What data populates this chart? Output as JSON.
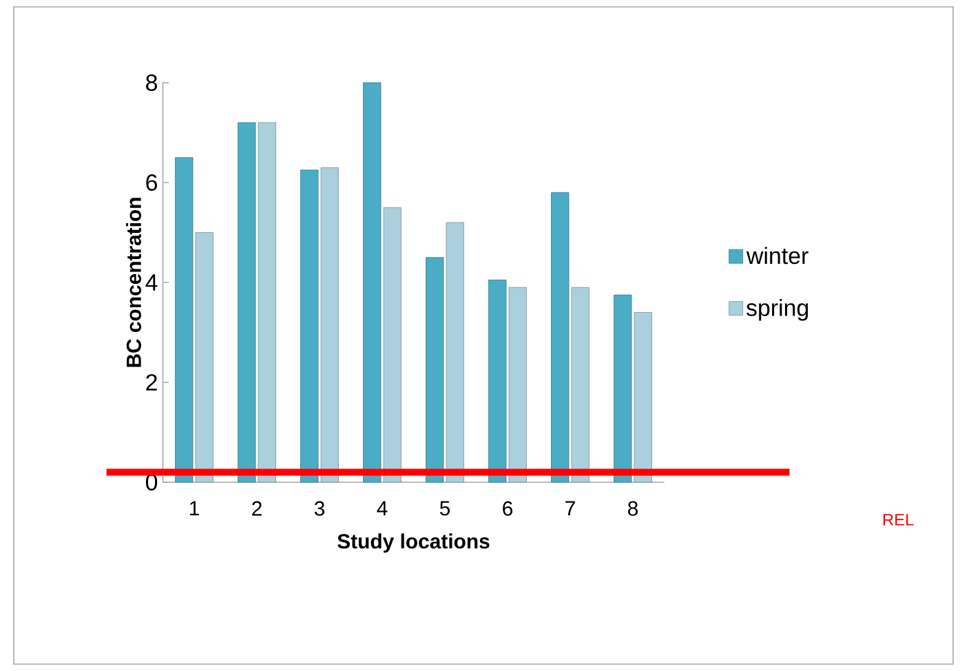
{
  "chart_data": {
    "type": "bar",
    "xlabel": "Study locations",
    "ylabel": "BC concentration",
    "categories": [
      "1",
      "2",
      "3",
      "4",
      "5",
      "6",
      "7",
      "8"
    ],
    "series": [
      {
        "name": "winter",
        "color": "#4bacc6",
        "values": [
          6.5,
          7.2,
          6.25,
          8.0,
          4.5,
          4.05,
          5.8,
          3.75
        ]
      },
      {
        "name": "spring",
        "color": "#a9d0dc",
        "values": [
          5.0,
          7.2,
          6.3,
          5.5,
          5.2,
          3.9,
          3.9,
          3.4
        ]
      }
    ],
    "ylim": [
      0,
      8
    ],
    "yticks": [
      0,
      2,
      4,
      6,
      8
    ],
    "grid": false,
    "legend": "right",
    "ref_lines": [
      {
        "axis": "y",
        "value": 0.2,
        "label": "REL",
        "color": "#ff0000"
      }
    ]
  }
}
